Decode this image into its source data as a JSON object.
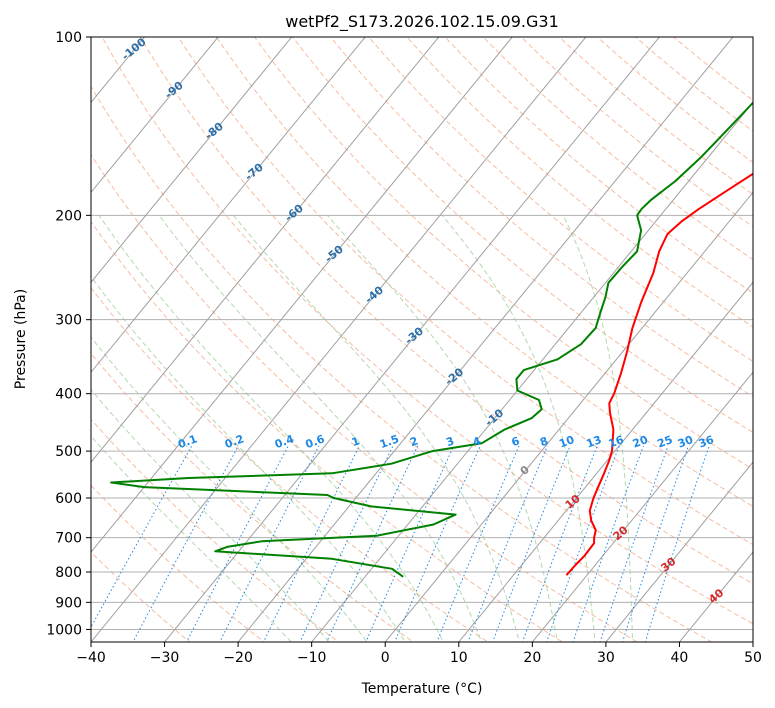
{
  "chart_data": {
    "type": "line",
    "subtype": "skew-t log-p",
    "title": "wetPf2_S173.2026.102.15.09.G31",
    "xlabel": "Temperature (°C)",
    "ylabel": "Pressure (hPa)",
    "xlim": [
      -40,
      50
    ],
    "ylim": [
      1050,
      100
    ],
    "y_scale": "log",
    "x_ticks": [
      "−40",
      "−30",
      "−20",
      "−10",
      "0",
      "10",
      "20",
      "30",
      "40",
      "50"
    ],
    "y_ticks": [
      "100",
      "200",
      "300",
      "400",
      "500",
      "600",
      "700",
      "800",
      "900",
      "1000"
    ],
    "grid": true,
    "isotherm_labels": [
      "-100",
      "-90",
      "-80",
      "-70",
      "-60",
      "-50",
      "-40",
      "-30",
      "-20",
      "-10",
      "0",
      "10",
      "20",
      "30",
      "40"
    ],
    "mixing_ratio_labels": [
      "0.1",
      "0.2",
      "0.4",
      "0.6",
      "1",
      "1.5",
      "2",
      "3",
      "4",
      "6",
      "8",
      "10",
      "13",
      "16",
      "20",
      "25",
      "30",
      "36"
    ],
    "series": [
      {
        "color": "#ff0000",
        "points": [
          [
            810,
            17.2
          ],
          [
            780,
            17.3
          ],
          [
            750,
            17.5
          ],
          [
            715,
            17.4
          ],
          [
            700,
            16.8
          ],
          [
            680,
            16.2
          ],
          [
            655,
            14.5
          ],
          [
            630,
            13.2
          ],
          [
            600,
            12.3
          ],
          [
            570,
            11.6
          ],
          [
            545,
            11.0
          ],
          [
            520,
            10.3
          ],
          [
            500,
            9.6
          ],
          [
            460,
            7.4
          ],
          [
            430,
            5.0
          ],
          [
            415,
            3.9
          ],
          [
            400,
            3.5
          ],
          [
            370,
            2.2
          ],
          [
            340,
            0.6
          ],
          [
            310,
            -1.3
          ],
          [
            280,
            -3.0
          ],
          [
            250,
            -4.6
          ],
          [
            230,
            -6.2
          ],
          [
            215,
            -7.0
          ],
          [
            205,
            -6.5
          ],
          [
            195,
            -5.5
          ],
          [
            180,
            -3.5
          ],
          [
            160,
            -0.5
          ],
          [
            140,
            2.5
          ],
          [
            125,
            5.0
          ],
          [
            115,
            6.2
          ],
          [
            108,
            8.0
          ],
          [
            100,
            11.0
          ]
        ]
      },
      {
        "color": "#008000",
        "points": [
          [
            815,
            -4.8
          ],
          [
            790,
            -7.2
          ],
          [
            760,
            -16.5
          ],
          [
            738,
            -33.2
          ],
          [
            725,
            -32.0
          ],
          [
            710,
            -28.0
          ],
          [
            695,
            -13.0
          ],
          [
            665,
            -6.5
          ],
          [
            640,
            -4.6
          ],
          [
            620,
            -17.0
          ],
          [
            600,
            -23.0
          ],
          [
            593,
            -24.2
          ],
          [
            575,
            -50.0
          ],
          [
            565,
            -55.0
          ],
          [
            555,
            -45.0
          ],
          [
            545,
            -26.0
          ],
          [
            525,
            -19.0
          ],
          [
            500,
            -14.8
          ],
          [
            485,
            -9.0
          ],
          [
            460,
            -7.4
          ],
          [
            440,
            -5.0
          ],
          [
            425,
            -4.6
          ],
          [
            410,
            -6.0
          ],
          [
            395,
            -10.0
          ],
          [
            378,
            -11.4
          ],
          [
            365,
            -11.4
          ],
          [
            350,
            -8.0
          ],
          [
            330,
            -6.5
          ],
          [
            310,
            -6.3
          ],
          [
            290,
            -7.5
          ],
          [
            275,
            -8.4
          ],
          [
            260,
            -9.6
          ],
          [
            245,
            -9.5
          ],
          [
            230,
            -9.2
          ],
          [
            212,
            -11.0
          ],
          [
            200,
            -13.2
          ],
          [
            195,
            -13.3
          ],
          [
            188,
            -13.0
          ],
          [
            175,
            -11.8
          ],
          [
            160,
            -11.0
          ],
          [
            145,
            -10.5
          ],
          [
            130,
            -10.0
          ],
          [
            115,
            -9.5
          ],
          [
            105,
            -8.0
          ],
          [
            100,
            -7.0
          ]
        ]
      }
    ]
  }
}
